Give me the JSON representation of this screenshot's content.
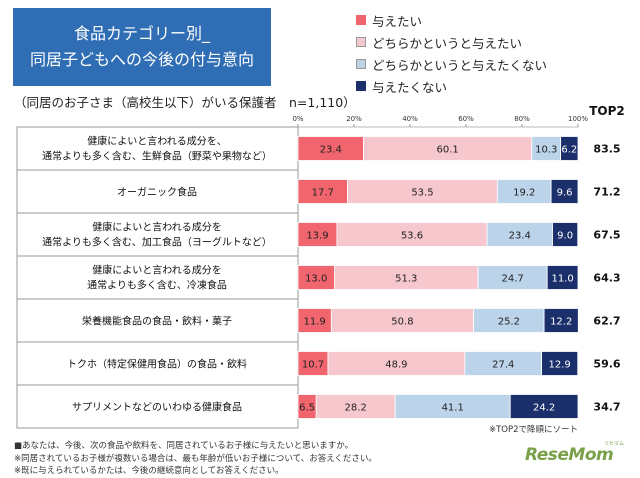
{
  "title": {
    "line1": "食品カテゴリー別_",
    "line2": "同居子どもへの今後の付与意向"
  },
  "subtitle": "（同居のお子さま（高校生以下）がいる保護者　n=1,110）",
  "top2_header": "TOP2",
  "sort_note": "※TOP2で降順にソート",
  "footnotes": [
    "■あなたは、今後、次の食品や飲料を、同居されているお子様に与えたいと思いますか。",
    "※同居されているお子様が複数いる場合は、最も年齢が低いお子様について、お答えください。",
    "※既に与えられているかたは、今後の継続意向としてお答えください。"
  ],
  "logo": {
    "text": "ReseMom",
    "sub": "リセマム"
  },
  "chart_data": {
    "type": "stacked-bar-horizontal",
    "x_ticks": [
      "0%",
      "20%",
      "40%",
      "60%",
      "80%",
      "100%"
    ],
    "xlim": [
      0,
      100
    ],
    "series": [
      {
        "name": "与えたい",
        "color": "#f0656e",
        "text_color": "#222222"
      },
      {
        "name": "どちらかというと与えたい",
        "color": "#f7c7ce",
        "text_color": "#222222"
      },
      {
        "name": "どちらかというと与えたくない",
        "color": "#bcd4ea",
        "text_color": "#222222"
      },
      {
        "name": "与えたくない",
        "color": "#1b2f6b",
        "text_color": "#ffffff"
      }
    ],
    "categories": [
      {
        "label": [
          "健康によいと言われる成分を、",
          "通常よりも多く含む、生鮮食品（野菜や果物など）"
        ],
        "values": [
          23.4,
          60.1,
          10.3,
          6.2
        ],
        "top2": "83.5"
      },
      {
        "label": [
          "オーガニック食品"
        ],
        "values": [
          17.7,
          53.5,
          19.2,
          9.6
        ],
        "top2": "71.2"
      },
      {
        "label": [
          "健康によいと言われる成分を",
          "通常よりも多く含む、加工食品（ヨーグルトなど）"
        ],
        "values": [
          13.9,
          53.6,
          23.4,
          9.0
        ],
        "top2": "67.5"
      },
      {
        "label": [
          "健康によいと言われる成分を",
          "通常よりも多く含む、冷凍食品"
        ],
        "values": [
          13.0,
          51.3,
          24.7,
          11.0
        ],
        "top2": "64.3"
      },
      {
        "label": [
          "栄養機能食品の食品・飲料・菓子"
        ],
        "values": [
          11.9,
          50.8,
          25.2,
          12.2
        ],
        "top2": "62.7"
      },
      {
        "label": [
          "トクホ（特定保健用食品）の食品・飲料"
        ],
        "values": [
          10.7,
          48.9,
          27.4,
          12.9
        ],
        "top2": "59.6"
      },
      {
        "label": [
          "サプリメントなどのいわゆる健康食品"
        ],
        "values": [
          6.5,
          28.2,
          41.1,
          24.2
        ],
        "top2": "34.7"
      }
    ]
  }
}
